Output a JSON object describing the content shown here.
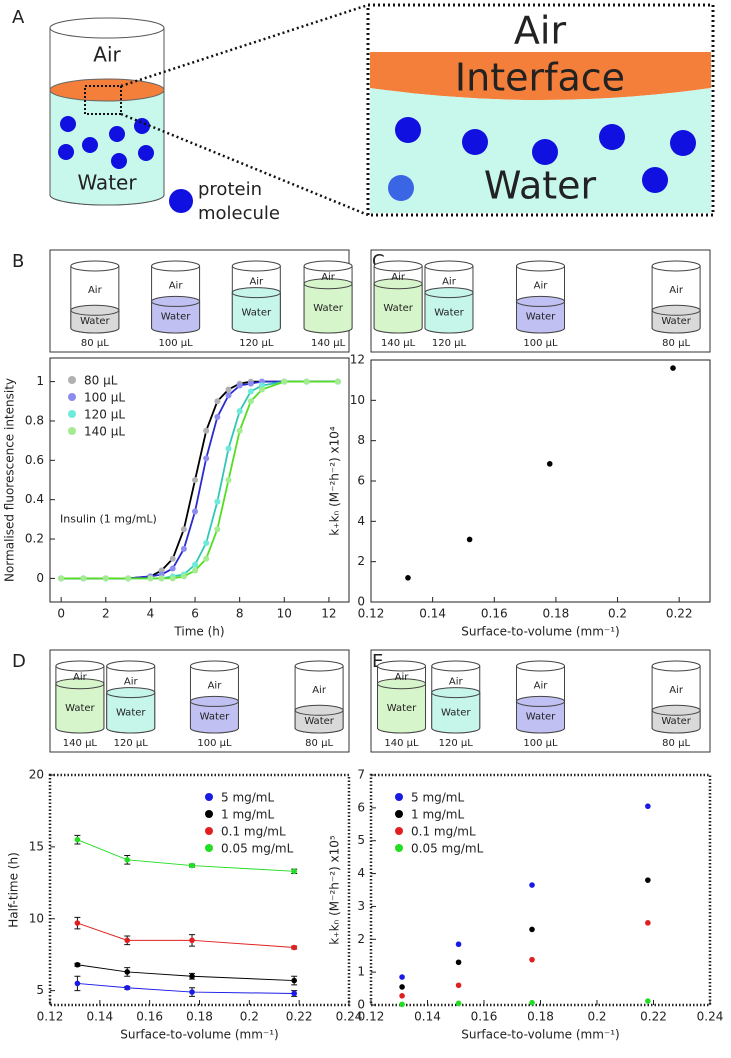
{
  "diagram": {
    "panel_label": "A",
    "air": "Air",
    "water": "Water",
    "protein_lines": [
      "protein",
      "molecule"
    ],
    "zoom_air": "Air",
    "zoom_interface": "Interface",
    "zoom_water": "Water"
  },
  "chart_data": [
    {
      "type": "line",
      "panel_label": "B",
      "inset": {
        "air": "Air",
        "water": "Water",
        "cylinders": [
          {
            "volume": "80 µL",
            "color": "#d9d9d9"
          },
          {
            "volume": "100 µL",
            "color": "#c0c0f2"
          },
          {
            "volume": "120 µL",
            "color": "#c6f6ea"
          },
          {
            "volume": "140 µL",
            "color": "#d6f5ca"
          }
        ]
      },
      "x_label": "Time (h)",
      "y_label": "Normalised fluorescence intensity",
      "annotation": "Insulin (1 mg/mL)",
      "x": [
        0,
        1,
        2,
        3,
        4,
        4.5,
        5,
        5.5,
        6,
        6.5,
        7,
        7.5,
        8,
        8.5,
        9,
        10,
        11,
        12.4
      ],
      "series": [
        {
          "name": "80 µL",
          "color": "#b0b0b0",
          "line_color": "#000000",
          "values": [
            0,
            0,
            0,
            0,
            0.01,
            0.04,
            0.1,
            0.25,
            0.5,
            0.75,
            0.9,
            0.96,
            0.99,
            1,
            1,
            1,
            1,
            1
          ]
        },
        {
          "name": "100 µL",
          "color": "#8c8cee",
          "line_color": "#2a2ad0",
          "values": [
            0,
            0,
            0,
            0,
            0.01,
            0.02,
            0.05,
            0.15,
            0.34,
            0.61,
            0.82,
            0.93,
            0.98,
            0.99,
            1,
            1,
            1,
            1
          ]
        },
        {
          "name": "120 µL",
          "color": "#6eeada",
          "line_color": "#30c8b4",
          "values": [
            0,
            0,
            0,
            0,
            0,
            0,
            0.01,
            0.02,
            0.07,
            0.18,
            0.39,
            0.66,
            0.85,
            0.95,
            0.98,
            1,
            1,
            1
          ]
        },
        {
          "name": "140 µL",
          "color": "#a4ec90",
          "line_color": "#55dd22",
          "values": [
            0,
            0,
            0,
            0,
            0,
            0,
            0,
            0.01,
            0.04,
            0.1,
            0.25,
            0.5,
            0.75,
            0.9,
            0.96,
            1,
            1,
            1
          ]
        }
      ],
      "xlim": [
        -0.5,
        12.9
      ],
      "xticks": [
        0,
        2,
        4,
        6,
        8,
        10,
        12
      ],
      "ylim": [
        -0.12,
        1.12
      ],
      "yticks": [
        0,
        0.2,
        0.4,
        0.6,
        0.8,
        1
      ],
      "legend": "upper left",
      "frame": "solid"
    },
    {
      "type": "scatter",
      "panel_label": "C",
      "inset": {
        "air": "Air",
        "water": "Water",
        "cylinders": [
          {
            "volume": "140 µL",
            "color": "#d6f5ca"
          },
          {
            "volume": "120 µL",
            "color": "#c6f6ea"
          },
          {
            "volume": "100 µL",
            "color": "#c0c0f2"
          },
          {
            "volume": "80 µL",
            "color": "#d9d9d9"
          }
        ]
      },
      "x_label": "Surface-to-volume (mm⁻¹)",
      "y_label": "k₊kₙ (M⁻²h⁻²) x10⁴",
      "x": [
        0.132,
        0.152,
        0.178,
        0.218
      ],
      "values": [
        1.2,
        3.1,
        6.85,
        11.6
      ],
      "color": "#000000",
      "xlim": [
        0.12,
        0.23
      ],
      "xticks": [
        0.12,
        0.14,
        0.16,
        0.18,
        0.2,
        0.22
      ],
      "ylim": [
        0,
        12
      ],
      "yticks": [
        0,
        2,
        4,
        6,
        8,
        10,
        12
      ],
      "frame": "solid"
    },
    {
      "type": "line",
      "panel_label": "D",
      "inset": {
        "air": "Air",
        "water": "Water",
        "cylinders": [
          {
            "volume": "140 µL",
            "color": "#d6f5ca"
          },
          {
            "volume": "120 µL",
            "color": "#c6f6ea"
          },
          {
            "volume": "100 µL",
            "color": "#c0c0f2"
          },
          {
            "volume": "80 µL",
            "color": "#d9d9d9"
          }
        ]
      },
      "x_label": "Surface-to-volume (mm⁻¹)",
      "y_label": "Half-time (h)",
      "x": [
        0.131,
        0.151,
        0.177,
        0.218
      ],
      "series": [
        {
          "name": "5 mg/mL",
          "color": "#1a1ae6",
          "values": [
            5.5,
            5.2,
            4.9,
            4.8
          ],
          "errors": [
            0.5,
            0.1,
            0.3,
            0.2
          ]
        },
        {
          "name": "1 mg/mL",
          "color": "#000000",
          "values": [
            6.8,
            6.3,
            6.0,
            5.7
          ],
          "errors": [
            0.1,
            0.3,
            0.2,
            0.3
          ]
        },
        {
          "name": "0.1 mg/mL",
          "color": "#e02020",
          "values": [
            9.7,
            8.5,
            8.5,
            8.0
          ],
          "errors": [
            0.4,
            0.3,
            0.4,
            0.1
          ]
        },
        {
          "name": "0.05 mg/mL",
          "color": "#22dd22",
          "values": [
            15.5,
            14.1,
            13.7,
            13.3
          ],
          "errors": [
            0.3,
            0.3,
            0.1,
            0.15
          ]
        }
      ],
      "xlim": [
        0.12,
        0.24
      ],
      "xticks": [
        0.12,
        0.14,
        0.16,
        0.18,
        0.2,
        0.22,
        0.24
      ],
      "ylim": [
        4,
        20
      ],
      "yticks": [
        5,
        10,
        15,
        20
      ],
      "legend": "upper right",
      "frame": "dotted"
    },
    {
      "type": "scatter",
      "panel_label": "E",
      "inset": {
        "air": "Air",
        "water": "Water",
        "cylinders": [
          {
            "volume": "140 µL",
            "color": "#d6f5ca"
          },
          {
            "volume": "120 µL",
            "color": "#c6f6ea"
          },
          {
            "volume": "100 µL",
            "color": "#c0c0f2"
          },
          {
            "volume": "80 µL",
            "color": "#d9d9d9"
          }
        ]
      },
      "x_label": "Surface-to-volume (mm⁻¹)",
      "y_label": "k₊kₙ (M⁻²h⁻²) x10⁵",
      "x": [
        0.131,
        0.151,
        0.177,
        0.218
      ],
      "series": [
        {
          "name": "5 mg/mL",
          "color": "#1a1ae6",
          "values": [
            0.85,
            1.85,
            3.65,
            6.05
          ]
        },
        {
          "name": "1 mg/mL",
          "color": "#000000",
          "values": [
            0.55,
            1.3,
            2.3,
            3.8
          ]
        },
        {
          "name": "0.1 mg/mL",
          "color": "#e02020",
          "values": [
            0.28,
            0.6,
            1.38,
            2.5
          ]
        },
        {
          "name": "0.05 mg/mL",
          "color": "#22dd22",
          "values": [
            0.02,
            0.05,
            0.07,
            0.12
          ]
        }
      ],
      "xlim": [
        0.12,
        0.24
      ],
      "xticks": [
        0.12,
        0.14,
        0.16,
        0.18,
        0.2,
        0.22,
        0.24
      ],
      "ylim": [
        0,
        7
      ],
      "yticks": [
        0,
        1,
        2,
        3,
        4,
        5,
        6,
        7
      ],
      "legend": "upper left",
      "frame": "dotted"
    }
  ]
}
